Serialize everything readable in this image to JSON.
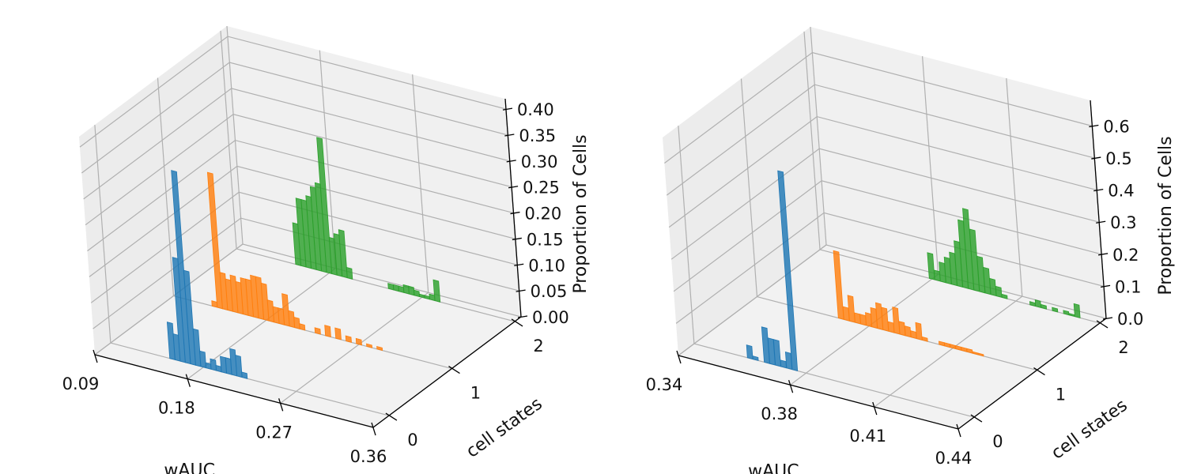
{
  "chart_data": [
    {
      "type": "bar",
      "title": "",
      "xlabel": "wAUC",
      "ylabel": "cell states",
      "zlabel": "Proportion of Cells",
      "x_ticks": [
        "0.09",
        "0.18",
        "0.27",
        "0.36"
      ],
      "y_ticks": [
        "0",
        "1",
        "2"
      ],
      "z_ticks": [
        "0.00",
        "0.05",
        "0.10",
        "0.15",
        "0.20",
        "0.25",
        "0.30",
        "0.35",
        "0.40"
      ],
      "xlim": [
        0.09,
        0.36
      ],
      "zlim": [
        0,
        0.42
      ],
      "grid": true,
      "series": [
        {
          "state": 0,
          "color": "#1f77b4",
          "x": [
            0.15,
            0.155,
            0.16,
            0.165,
            0.17,
            0.175,
            0.18,
            0.185,
            0.19,
            0.195,
            0.2,
            0.205,
            0.21,
            0.215,
            0.22
          ],
          "values": [
            0.07,
            0.05,
            0.2,
            0.37,
            0.18,
            0.07,
            0.03,
            0.01,
            0.02,
            0.01,
            0.03,
            0.03,
            0.05,
            0.04,
            0.01
          ]
        },
        {
          "state": 1,
          "color": "#ff7f0e",
          "x": [
            0.13,
            0.135,
            0.14,
            0.145,
            0.15,
            0.155,
            0.16,
            0.165,
            0.17,
            0.175,
            0.18,
            0.185,
            0.19,
            0.195,
            0.2,
            0.205,
            0.21,
            0.215,
            0.23,
            0.24,
            0.25,
            0.26,
            0.27,
            0.28,
            0.29
          ],
          "values": [
            0.01,
            0.26,
            0.07,
            0.06,
            0.07,
            0.06,
            0.07,
            0.07,
            0.08,
            0.08,
            0.07,
            0.04,
            0.03,
            0.03,
            0.06,
            0.03,
            0.02,
            0.01,
            0.01,
            0.02,
            0.02,
            0.01,
            0.01,
            0.005,
            0.005
          ]
        },
        {
          "state": 2,
          "color": "#2ca02c",
          "x": [
            0.15,
            0.155,
            0.16,
            0.165,
            0.17,
            0.175,
            0.18,
            0.185,
            0.19,
            0.195,
            0.2,
            0.24,
            0.245,
            0.25,
            0.255,
            0.26,
            0.265,
            0.27,
            0.275,
            0.28,
            0.285
          ],
          "values": [
            0.08,
            0.13,
            0.13,
            0.14,
            0.16,
            0.17,
            0.26,
            0.07,
            0.08,
            0.09,
            0.02,
            0.01,
            0.01,
            0.01,
            0.015,
            0.015,
            0.01,
            0.005,
            0.005,
            0.01,
            0.04
          ]
        }
      ]
    },
    {
      "type": "bar",
      "title": "",
      "xlabel": "wAUC",
      "ylabel": "cell states",
      "zlabel": "Proportion of Cells",
      "x_ticks": [
        "0.34",
        "0.38",
        "0.41",
        "0.44"
      ],
      "y_ticks": [
        "0",
        "1",
        "2"
      ],
      "z_ticks": [
        "0.0",
        "0.1",
        "0.2",
        "0.3",
        "0.4",
        "0.5",
        "0.6"
      ],
      "xlim": [
        0.34,
        0.44
      ],
      "zlim": [
        0,
        0.68
      ],
      "grid": true,
      "series": [
        {
          "state": 0,
          "color": "#1f77b4",
          "x": [
            0.36,
            0.362,
            0.366,
            0.368,
            0.37,
            0.372,
            0.374,
            0.376
          ],
          "values": [
            0.04,
            0.01,
            0.11,
            0.08,
            0.08,
            0.02,
            0.05,
            0.62
          ]
        },
        {
          "state": 1,
          "color": "#ff7f0e",
          "x": [
            0.37,
            0.372,
            0.374,
            0.376,
            0.378,
            0.38,
            0.382,
            0.384,
            0.386,
            0.388,
            0.39,
            0.392,
            0.394,
            0.396,
            0.398,
            0.4,
            0.406,
            0.408,
            0.41,
            0.412,
            0.414,
            0.416,
            0.418,
            0.42
          ],
          "values": [
            0.21,
            0.04,
            0.08,
            0.03,
            0.03,
            0.04,
            0.06,
            0.08,
            0.07,
            0.03,
            0.08,
            0.04,
            0.03,
            0.02,
            0.05,
            0.01,
            0.01,
            0.01,
            0.01,
            0.01,
            0.01,
            0.01,
            0.005,
            0.005
          ]
        },
        {
          "state": 2,
          "color": "#2ca02c",
          "x": [
            0.38,
            0.382,
            0.384,
            0.386,
            0.388,
            0.39,
            0.392,
            0.394,
            0.396,
            0.398,
            0.4,
            0.402,
            0.404,
            0.406,
            0.416,
            0.418,
            0.42,
            0.424,
            0.428,
            0.43,
            0.432
          ],
          "values": [
            0.08,
            0.03,
            0.06,
            0.08,
            0.1,
            0.14,
            0.21,
            0.25,
            0.19,
            0.11,
            0.08,
            0.05,
            0.03,
            0.01,
            0.01,
            0.02,
            0.01,
            0.01,
            0.01,
            0.005,
            0.04
          ]
        }
      ]
    }
  ]
}
